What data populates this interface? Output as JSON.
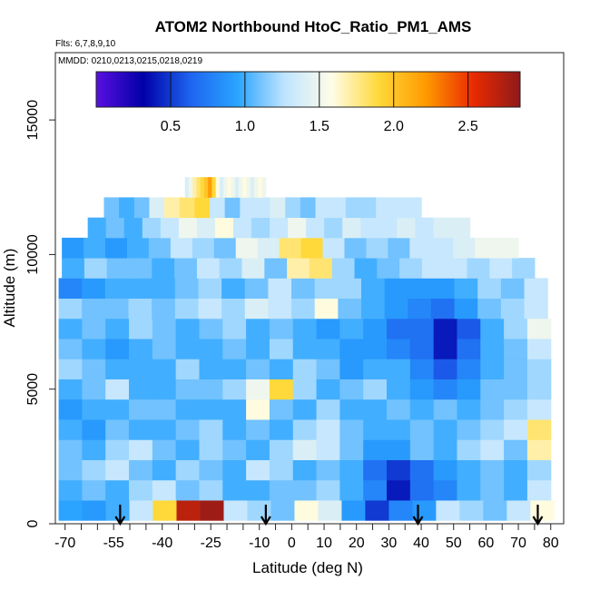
{
  "chart_data": {
    "type": "heatmap",
    "title": "ATOM2 Northbound HtoC_Ratio_PM1_AMS",
    "flights_label": "Flts: 6,7,8,9,10",
    "dates_label": "MMDD: 0210,0213,0215,0218,0219",
    "xlabel": "Latitude (deg N)",
    "ylabel": "Altitude (m)",
    "xlim": [
      -73,
      84
    ],
    "ylim": [
      0,
      17500
    ],
    "x_ticks": [
      -70,
      -55,
      -40,
      -25,
      -10,
      0,
      10,
      20,
      30,
      40,
      50,
      60,
      70,
      80
    ],
    "y_ticks": [
      0,
      5000,
      10000,
      15000
    ],
    "colorbar": {
      "min": 0,
      "max": 2.85,
      "ticks": [
        0.5,
        1.0,
        1.5,
        2.0,
        2.5
      ],
      "tick_labels": [
        "0.5",
        "1.0",
        "1.5",
        "2.0",
        "2.5"
      ],
      "colors": [
        "#5a10e0",
        "#0000a8",
        "#1e64f0",
        "#2aa4ff",
        "#bfe4ff",
        "#fffde8",
        "#ffd83a",
        "#ff9a00",
        "#ea2a00",
        "#8e1a1a"
      ]
    },
    "profile_markers_lat": [
      -53,
      -8,
      39,
      76
    ],
    "rows": [
      {
        "alt": 500,
        "lat_min": -72,
        "lat_max": 81,
        "values": [
          0.95,
          0.9,
          1.0,
          1.3,
          1.9,
          2.7,
          2.8,
          1.3,
          1.2,
          1.1,
          1.6,
          1.4,
          0.9,
          0.5,
          0.8,
          0.9,
          1.3,
          1.2,
          1.1,
          1.3,
          1.6
        ]
      },
      {
        "alt": 1250,
        "lat_min": -72,
        "lat_max": 80,
        "values": [
          1.0,
          1.1,
          1.0,
          1.2,
          1.3,
          1.1,
          1.2,
          1.0,
          1.0,
          1.1,
          1.1,
          1.2,
          1.0,
          0.8,
          0.4,
          0.7,
          0.8,
          1.0,
          1.1,
          1.0,
          1.3
        ]
      },
      {
        "alt": 2000,
        "lat_min": -72,
        "lat_max": 80,
        "values": [
          1.1,
          1.2,
          1.3,
          1.1,
          1.0,
          1.2,
          1.1,
          1.0,
          1.3,
          1.2,
          1.0,
          1.1,
          1.0,
          0.7,
          0.5,
          0.7,
          0.9,
          1.0,
          1.1,
          1.0,
          1.2
        ]
      },
      {
        "alt": 2750,
        "lat_min": -72,
        "lat_max": 80,
        "values": [
          1.1,
          1.0,
          1.2,
          1.3,
          1.1,
          1.0,
          1.2,
          1.1,
          1.0,
          1.2,
          1.4,
          1.3,
          1.1,
          0.9,
          0.9,
          1.1,
          1.0,
          1.2,
          1.3,
          1.1,
          1.7
        ]
      },
      {
        "alt": 3500,
        "lat_min": -72,
        "lat_max": 80,
        "values": [
          1.0,
          0.9,
          1.1,
          1.0,
          1.0,
          1.1,
          1.2,
          1.0,
          1.1,
          1.0,
          1.2,
          1.3,
          1.1,
          1.0,
          1.0,
          1.1,
          1.0,
          1.1,
          1.2,
          1.3,
          1.8
        ]
      },
      {
        "alt": 4250,
        "lat_min": -72,
        "lat_max": 80,
        "values": [
          0.9,
          1.0,
          1.0,
          1.1,
          1.1,
          1.0,
          1.0,
          1.0,
          1.6,
          1.1,
          1.0,
          1.2,
          1.0,
          1.0,
          1.1,
          1.0,
          1.1,
          1.0,
          1.1,
          1.2,
          1.3
        ]
      },
      {
        "alt": 5000,
        "lat_min": -72,
        "lat_max": 80,
        "values": [
          1.0,
          1.1,
          1.3,
          1.0,
          1.0,
          1.1,
          1.1,
          1.2,
          1.5,
          1.9,
          1.2,
          1.0,
          1.1,
          1.2,
          1.0,
          0.9,
          0.8,
          0.9,
          1.1,
          1.1,
          1.2
        ]
      },
      {
        "alt": 5750,
        "lat_min": -72,
        "lat_max": 80,
        "values": [
          1.2,
          1.1,
          1.0,
          1.0,
          1.0,
          1.2,
          1.0,
          1.0,
          1.1,
          1.0,
          1.2,
          1.1,
          0.9,
          1.0,
          1.0,
          0.8,
          0.6,
          0.8,
          1.0,
          1.1,
          1.2
        ]
      },
      {
        "alt": 6500,
        "lat_min": -72,
        "lat_max": 80,
        "values": [
          1.1,
          1.0,
          0.9,
          1.0,
          1.1,
          1.0,
          1.0,
          1.1,
          1.0,
          1.2,
          1.0,
          1.0,
          0.9,
          0.9,
          0.8,
          0.7,
          0.4,
          0.7,
          1.0,
          1.1,
          1.3
        ]
      },
      {
        "alt": 7250,
        "lat_min": -72,
        "lat_max": 80,
        "values": [
          1.0,
          1.1,
          1.0,
          1.2,
          1.1,
          1.0,
          1.1,
          1.2,
          1.0,
          1.1,
          1.0,
          0.9,
          1.0,
          0.9,
          0.7,
          0.7,
          0.4,
          0.6,
          1.0,
          1.2,
          1.5
        ]
      },
      {
        "alt": 8000,
        "lat_min": -72,
        "lat_max": 79,
        "values": [
          1.2,
          1.1,
          1.1,
          1.2,
          1.1,
          1.2,
          1.3,
          1.2,
          1.4,
          1.3,
          1.2,
          1.6,
          1.1,
          1.0,
          0.9,
          0.8,
          0.7,
          0.9,
          1.1,
          1.2,
          1.3
        ]
      },
      {
        "alt": 8750,
        "lat_min": -72,
        "lat_max": 79,
        "values": [
          0.8,
          0.9,
          1.0,
          1.0,
          1.0,
          1.1,
          1.2,
          1.0,
          1.1,
          1.3,
          1.1,
          1.2,
          1.2,
          1.0,
          0.9,
          0.9,
          0.9,
          1.0,
          1.2,
          1.1,
          1.3
        ]
      },
      {
        "alt": 9500,
        "lat_min": -71,
        "lat_max": 75,
        "values": [
          1.0,
          1.2,
          1.1,
          1.1,
          1.0,
          1.1,
          1.3,
          1.2,
          1.4,
          1.1,
          1.7,
          1.8,
          1.2,
          1.0,
          1.1,
          1.2,
          1.3,
          1.3,
          1.2,
          1.3,
          1.2
        ]
      },
      {
        "alt": 10250,
        "lat_min": -71,
        "lat_max": 70,
        "values": [
          0.9,
          1.0,
          0.9,
          1.0,
          1.1,
          1.3,
          1.2,
          1.1,
          1.5,
          1.4,
          1.8,
          1.9,
          1.3,
          1.1,
          1.2,
          1.1,
          1.3,
          1.3,
          1.4,
          1.5,
          1.5
        ]
      },
      {
        "alt": 11000,
        "lat_min": -63,
        "lat_max": 55,
        "values": [
          1.0,
          1.1,
          1.0,
          1.2,
          1.3,
          1.5,
          1.4,
          1.6,
          1.3,
          1.2,
          1.3,
          1.5,
          1.3,
          1.2,
          1.4,
          1.3,
          1.3,
          1.4,
          1.3,
          1.4,
          1.4
        ]
      },
      {
        "alt": 11750,
        "lat_min": -58,
        "lat_max": 40,
        "values": [
          1.1,
          1.0,
          1.1,
          1.4,
          1.7,
          1.8,
          1.9,
          1.3,
          1.1,
          1.3,
          1.3,
          1.4,
          1.2,
          1.1,
          1.3,
          1.3,
          1.2,
          1.2,
          1.3,
          1.3,
          1.3
        ]
      },
      {
        "alt": 12500,
        "lat_min": -33,
        "lat_max": -8,
        "values": [
          1.4,
          1.5,
          1.7,
          1.8,
          1.9,
          2.0,
          2.2,
          1.9,
          1.6,
          1.4,
          1.5,
          1.6,
          1.5,
          1.4,
          1.5,
          1.6,
          1.5,
          1.4,
          1.5,
          1.6,
          1.5
        ]
      }
    ]
  }
}
